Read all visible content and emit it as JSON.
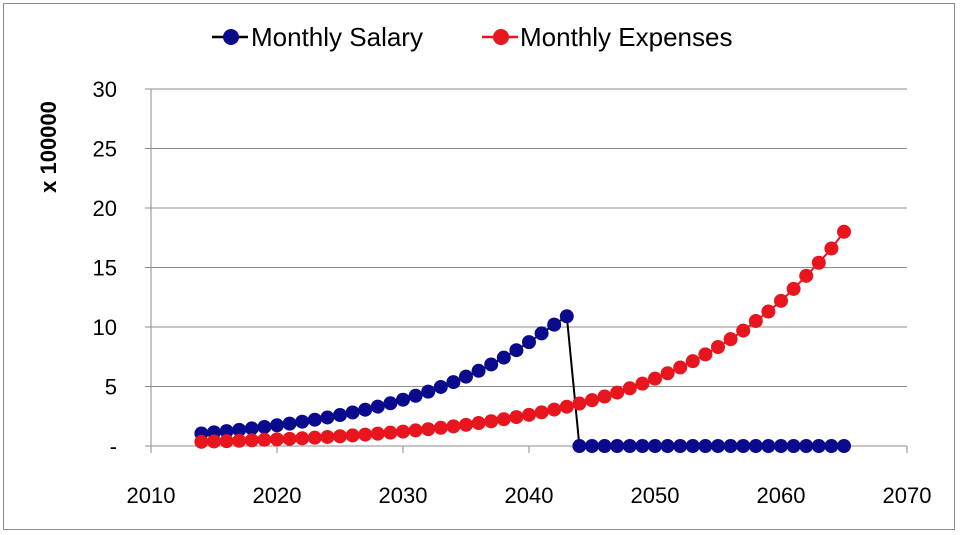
{
  "chart_data": {
    "type": "line",
    "title": "",
    "xlabel": "",
    "ylabel": "x 100000",
    "xlim": [
      2010,
      2070
    ],
    "ylim": [
      0,
      30
    ],
    "x_ticks": [
      "2010",
      "2020",
      "2030",
      "2040",
      "2050",
      "2060",
      "2070"
    ],
    "y_ticks": [
      "-",
      "5",
      "10",
      "15",
      "20",
      "25",
      "30"
    ],
    "grid": "horizontal",
    "legend": "top",
    "colors": {
      "salary": "#0a0a8c",
      "expenses": "#e8141e",
      "salary_line": "#000000"
    },
    "x": [
      2014,
      2015,
      2016,
      2017,
      2018,
      2019,
      2020,
      2021,
      2022,
      2023,
      2024,
      2025,
      2026,
      2027,
      2028,
      2029,
      2030,
      2031,
      2032,
      2033,
      2034,
      2035,
      2036,
      2037,
      2038,
      2039,
      2040,
      2041,
      2042,
      2043,
      2044,
      2045,
      2046,
      2047,
      2048,
      2049,
      2050,
      2051,
      2052,
      2053,
      2054,
      2055,
      2056,
      2057,
      2058,
      2059,
      2060,
      2061,
      2062,
      2063,
      2064,
      2065
    ],
    "series": [
      {
        "name": "Monthly Salary",
        "values": [
          1.05,
          1.15,
          1.25,
          1.36,
          1.48,
          1.6,
          1.74,
          1.88,
          2.04,
          2.21,
          2.4,
          2.6,
          2.82,
          3.05,
          3.31,
          3.59,
          3.89,
          4.22,
          4.57,
          4.96,
          5.37,
          5.83,
          6.32,
          6.85,
          7.43,
          8.05,
          8.73,
          9.46,
          10.2,
          10.9,
          0,
          0,
          0,
          0,
          0,
          0,
          0,
          0,
          0,
          0,
          0,
          0,
          0,
          0,
          0,
          0,
          0,
          0,
          0,
          0,
          0,
          0
        ]
      },
      {
        "name": "Monthly Expenses",
        "values": [
          0.35,
          0.38,
          0.41,
          0.44,
          0.48,
          0.52,
          0.56,
          0.6,
          0.65,
          0.7,
          0.76,
          0.82,
          0.89,
          0.96,
          1.04,
          1.12,
          1.21,
          1.31,
          1.41,
          1.53,
          1.65,
          1.78,
          1.93,
          2.08,
          2.25,
          2.43,
          2.62,
          2.83,
          3.06,
          3.3,
          3.57,
          3.85,
          4.16,
          4.49,
          4.85,
          5.24,
          5.66,
          6.11,
          6.6,
          7.13,
          7.7,
          8.32,
          8.98,
          9.7,
          10.5,
          11.3,
          12.2,
          13.2,
          14.3,
          15.4,
          16.6,
          18.0
        ]
      }
    ]
  }
}
